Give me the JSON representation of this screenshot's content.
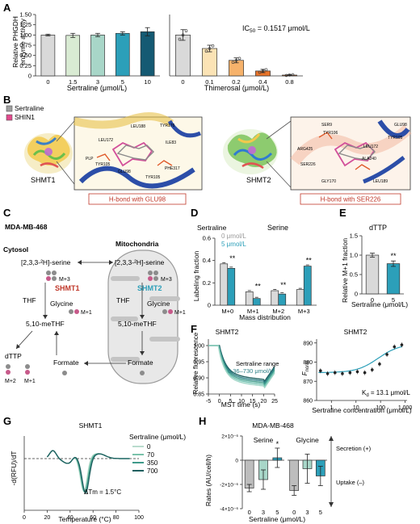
{
  "panel_labels": {
    "A": "A",
    "B": "B",
    "C": "C",
    "D": "D",
    "E": "E",
    "F": "F",
    "G": "G",
    "H": "H"
  },
  "chart_data": [
    {
      "id": "A-left",
      "type": "bar",
      "ylabel": "Relative PHGDH enzyme activity",
      "xlabel": "Sertraline (μmol/L)",
      "categories": [
        "0",
        "1.5",
        "3",
        "5",
        "10"
      ],
      "values": [
        1.0,
        0.99,
        1.0,
        1.04,
        1.08
      ],
      "errors": [
        0.02,
        0.05,
        0.04,
        0.04,
        0.1
      ],
      "ylim": [
        0,
        1.5
      ],
      "yticks": [
        "0",
        "0.25",
        "0.50",
        "0.75",
        "1.00",
        "1.25",
        "1.50"
      ],
      "colors": [
        "#d9d9d9",
        "#d9ebd3",
        "#a8d6c8",
        "#2c9fb9",
        "#155a73"
      ]
    },
    {
      "id": "A-right",
      "type": "bar",
      "xlabel": "Thimerosal (μmol/L)",
      "annotation": "IC50 = 0.1517 μmol/L",
      "annotation_main": "IC",
      "annotation_sub": "50",
      "annotation_rest": " = 0.1517 μmol/L",
      "categories": [
        "0",
        "0.1",
        "0.2",
        "0.4",
        "0.8"
      ],
      "values": [
        1.0,
        0.67,
        0.38,
        0.12,
        0.02
      ],
      "errors": [
        0.13,
        0.08,
        0.06,
        0.04,
        0.01
      ],
      "ylim": [
        0,
        1.5
      ],
      "colors": [
        "#d9d9d9",
        "#fbe3b5",
        "#f6b26b",
        "#e8742a",
        "#c75a1b"
      ]
    },
    {
      "id": "D",
      "type": "bar",
      "title": "Serine",
      "ylabel": "Labeling fraction",
      "xlabel": "Mass distribution",
      "categories": [
        "M+0",
        "M+1",
        "M+2",
        "M+3"
      ],
      "series": [
        {
          "name": "0 μmol/L",
          "values": [
            0.37,
            0.12,
            0.13,
            0.14
          ],
          "color": "#d9d9d9"
        },
        {
          "name": "5 μmol/L",
          "values": [
            0.33,
            0.06,
            0.1,
            0.35
          ],
          "color": "#2c9fb9"
        }
      ],
      "ylim": [
        0,
        0.6
      ],
      "yticks": [
        "0",
        "0.2",
        "0.4",
        "0.6"
      ],
      "significance": [
        "**",
        "**",
        "**",
        "**"
      ]
    },
    {
      "id": "E",
      "type": "bar",
      "title": "dTTP",
      "ylabel": "Relative M+1 fraction",
      "xlabel": "Sertraline (μmol/L)",
      "categories": [
        "0",
        "5"
      ],
      "values": [
        1.0,
        0.78
      ],
      "errors": [
        0.05,
        0.07
      ],
      "ylim": [
        0,
        1.5
      ],
      "yticks": [
        "0",
        "0.5",
        "1.0",
        "1.5"
      ],
      "significance": [
        "",
        "**"
      ],
      "colors": [
        "#d9d9d9",
        "#2c9fb9"
      ]
    },
    {
      "id": "F-left",
      "type": "line",
      "title": "SHMT2",
      "ylabel": "Relative fluorescence",
      "xlabel": "MST time (s)",
      "legend": "Sertraline range",
      "legend_range": "0.36–730 μmol/L",
      "xticks": [
        "-5",
        "0",
        "5",
        "10",
        "15",
        "20",
        "25"
      ],
      "yticks": [
        "0.85",
        "0.90",
        "0.95",
        "1.00"
      ],
      "xlim": [
        -5,
        25
      ],
      "ylim": [
        0.85,
        1.02
      ]
    },
    {
      "id": "F-right",
      "type": "scatter",
      "title": "SHMT2",
      "ylabel": "F",
      "ylabel_sub": "norm",
      "xlabel": "Sertraline concentration (μmol/L)",
      "annotation": "K",
      "annotation_sub": "d",
      "annotation_rest": " = 13.1 μmol/L",
      "xticks": [
        "1",
        "10",
        "100",
        "1,000"
      ],
      "yticks": [
        "860",
        "870",
        "880",
        "890"
      ],
      "x": [
        0.36,
        0.7,
        1.4,
        2.8,
        5.7,
        11.4,
        22.8,
        45.6,
        91,
        182,
        365,
        730
      ],
      "y": [
        875.5,
        874,
        874.5,
        874,
        874.5,
        875,
        874.5,
        876,
        879,
        884,
        888,
        889
      ],
      "ylim": [
        860,
        892
      ]
    },
    {
      "id": "G",
      "type": "line",
      "title": "SHMT1",
      "ylabel": "-d(RFU)/dT",
      "xlabel": "Temperature (°C)",
      "xticks": [
        "0",
        "20",
        "40",
        "60",
        "80",
        "100"
      ],
      "annotation": "ΔTm = 1.5°C",
      "legend_title": "Sertraline (μmol/L)",
      "series": [
        {
          "name": "0",
          "color": "#b9dccd"
        },
        {
          "name": "70",
          "color": "#79c2aa"
        },
        {
          "name": "350",
          "color": "#3f9a8a"
        },
        {
          "name": "700",
          "color": "#1e5f5f"
        }
      ]
    },
    {
      "id": "H",
      "type": "bar",
      "title": "MDA-MB-468",
      "ylabel": "Rates (AU/cell/h)",
      "xlabel": "Sertraline (μmol/L)",
      "panels": [
        {
          "title": "Serine",
          "categories": [
            "0",
            "3",
            "5"
          ],
          "values": [
            -2.3,
            -1.6,
            0.2
          ],
          "errors": [
            0.3,
            0.8,
            0.8
          ],
          "significance": [
            "",
            "",
            "*"
          ]
        },
        {
          "title": "Glycine",
          "categories": [
            "0",
            "3",
            "5"
          ],
          "values": [
            -2.5,
            -0.7,
            -1.3
          ],
          "errors": [
            0.4,
            1.2,
            0.8
          ],
          "significance": [
            "",
            "",
            ""
          ]
        }
      ],
      "yticks": [
        "-4×10⁻⁶",
        "-2×10⁻⁶",
        "0",
        "2×10⁻⁶"
      ],
      "secretion": "Secretion (+)",
      "uptake": "Uptake (–)",
      "colors": [
        "#bdbdbd",
        "#a8d6c8",
        "#2c9fb9"
      ]
    }
  ],
  "B": {
    "legend": [
      {
        "label": "Sertraline",
        "color": "#9e9e9e"
      },
      {
        "label": "SHIN1",
        "color": "#e24a8d"
      }
    ],
    "left_protein": "SHMT1",
    "right_protein": "SHMT2",
    "left_caption": "H-bond with GLU98",
    "right_caption": "H-bond with SER226",
    "left_residues": [
      "LEU188",
      "TYR176",
      "LEU172",
      "ILE83",
      "PLP",
      "TYR105",
      "GLU98",
      "PHE317",
      "TYR105"
    ],
    "right_residues": [
      "SER9",
      "GLU98",
      "TYR106",
      "TYR105",
      "ARG425",
      "LEU172",
      "ALA240",
      "SER226",
      "GLY170",
      "LEU189"
    ]
  },
  "C": {
    "cell_line": "MDA-MB-468",
    "cytosol": "Cytosol",
    "mitochondria": "Mitochondria",
    "serine_cyto": "[2,3,3-²H]-serine",
    "serine_mito": "[2,3,3-²H]-serine",
    "shmt1": "SHMT1",
    "shmt2": "SHMT2",
    "thf": "THF",
    "glycine": "Glycine",
    "methf": "5,10-meTHF",
    "formate": "Formate",
    "dttp": "dTTP",
    "m3": "M+3",
    "m1": "M+1",
    "m2": "M+2",
    "sertraline_legend": "Sertraline",
    "legend_0": "0 μmol/L",
    "legend_5": "5 μmol/L"
  }
}
